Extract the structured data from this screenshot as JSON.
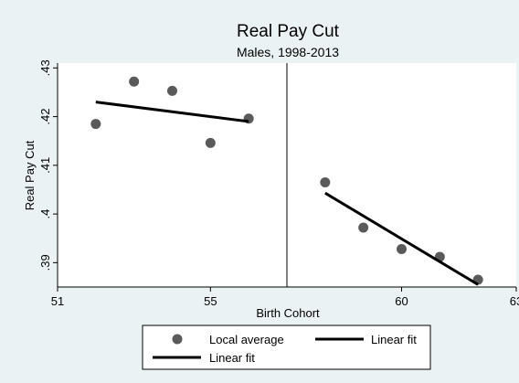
{
  "chart_data": {
    "type": "scatter",
    "title": "Real Pay Cut",
    "subtitle": "Males, 1998-2013",
    "xlabel": "Birth Cohort",
    "ylabel": "Real Pay Cut",
    "xlim": [
      51,
      63
    ],
    "ylim": [
      0.385,
      0.431
    ],
    "xticks": [
      51,
      55,
      60,
      63
    ],
    "xtick_labels": [
      "51",
      "55",
      "60",
      "63"
    ],
    "yticks": [
      0.39,
      0.4,
      0.41,
      0.42,
      0.43
    ],
    "ytick_labels": [
      ".39",
      ".4",
      ".41",
      ".42",
      ".43"
    ],
    "grid": false,
    "cutoff_x": 57,
    "legend_position": "bottom",
    "series": [
      {
        "name": "Local average",
        "kind": "scatter",
        "color": "#5a5a5a",
        "x": [
          52,
          53,
          54,
          55,
          56,
          58,
          59,
          60,
          61,
          62
        ],
        "y": [
          0.4185,
          0.4272,
          0.4253,
          0.4146,
          0.4196,
          0.4065,
          0.3972,
          0.3928,
          0.3912,
          0.3865
        ]
      },
      {
        "name": "Linear fit",
        "kind": "line",
        "color": "#000000",
        "x": [
          52,
          56
        ],
        "y": [
          0.423,
          0.419
        ]
      },
      {
        "name": "Linear fit",
        "kind": "line",
        "color": "#000000",
        "x": [
          58,
          62
        ],
        "y": [
          0.4043,
          0.3855
        ]
      }
    ]
  }
}
